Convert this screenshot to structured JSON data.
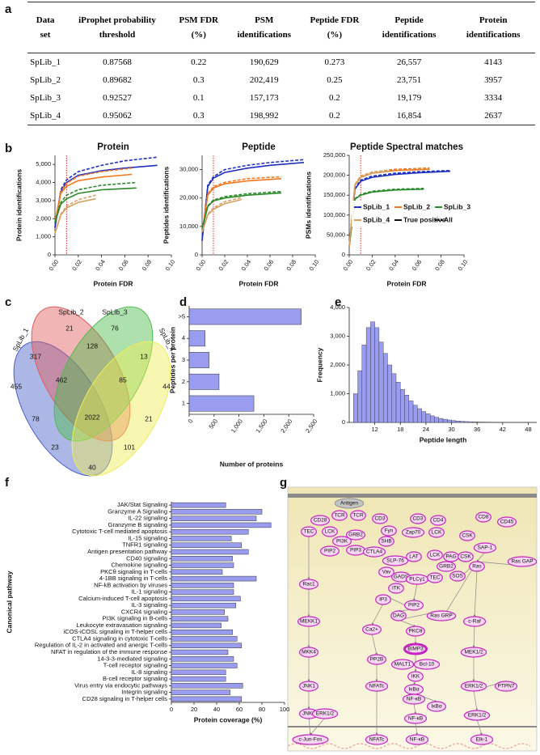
{
  "panel_labels": [
    "a",
    "b",
    "c",
    "d",
    "e",
    "f",
    "g"
  ],
  "table": {
    "header": [
      "Data set",
      "iProphet probability threshold",
      "PSM FDR (%)",
      "PSM identifications",
      "Peptide FDR (%)",
      "Peptide identifications",
      "Protein identifications"
    ],
    "rows": [
      [
        "SpLib_1",
        "0.87568",
        "0.22",
        "190,629",
        "0.273",
        "26,557",
        "4143"
      ],
      [
        "SpLib_2",
        "0.89682",
        "0.3",
        "202,419",
        "0.25",
        "23,751",
        "3957"
      ],
      [
        "SpLib_3",
        "0.92527",
        "0.1",
        "157,173",
        "0.2",
        "19,179",
        "3334"
      ],
      [
        "SpLib_4",
        "0.95062",
        "0.3",
        "198,992",
        "0.2",
        "16,854",
        "2637"
      ]
    ]
  },
  "chart_data": [
    {
      "type": "line",
      "title": "Protein",
      "x_label": "Protein FDR",
      "y_label": "Protein identifications",
      "vline": 0.01,
      "xlim": [
        0,
        0.1
      ],
      "xticks": [
        {
          "value": 0,
          "label": "0.00"
        },
        0.02,
        0.04,
        0.06,
        0.08,
        {
          "value": 0.1,
          "label": "0.10"
        }
      ],
      "ylim": [
        0,
        5500
      ],
      "yticks": [
        0,
        {
          "value": 1000,
          "label": "1,000"
        },
        {
          "value": 2000,
          "label": "2,000"
        },
        {
          "value": 3000,
          "label": "3,000"
        },
        {
          "value": 4000,
          "label": "4,000"
        },
        {
          "value": 5000,
          "label": "5,000"
        }
      ],
      "series": [
        {
          "name": "SpLib_1",
          "line": "True positive",
          "dashed": false,
          "color": "#1f2fbf",
          "x": [
            0,
            0.005,
            0.01,
            0.02,
            0.04,
            0.06,
            0.088
          ],
          "values": [
            1500,
            3500,
            4000,
            4400,
            4650,
            4800,
            4950
          ]
        },
        {
          "name": "SpLib_1",
          "line": "All",
          "dashed": true,
          "color": "#1f2fbf",
          "x": [
            0,
            0.005,
            0.01,
            0.02,
            0.04,
            0.06,
            0.088
          ],
          "values": [
            1500,
            3600,
            4150,
            4600,
            4950,
            5200,
            5400
          ]
        },
        {
          "name": "SpLib_2",
          "line": "True positive",
          "dashed": false,
          "color": "#f07820",
          "x": [
            0,
            0.005,
            0.01,
            0.02,
            0.04,
            0.066
          ],
          "values": [
            1800,
            3400,
            3800,
            4100,
            4300,
            4450
          ]
        },
        {
          "name": "SpLib_2",
          "line": "All",
          "dashed": true,
          "color": "#f07820",
          "x": [
            0,
            0.005,
            0.01,
            0.02,
            0.04,
            0.066
          ],
          "values": [
            1800,
            3500,
            3950,
            4350,
            4600,
            4800
          ]
        },
        {
          "name": "SpLib_3",
          "line": "True positive",
          "dashed": false,
          "color": "#2a8a2a",
          "x": [
            0,
            0.005,
            0.01,
            0.02,
            0.04,
            0.07
          ],
          "values": [
            1800,
            2800,
            3100,
            3400,
            3600,
            3700
          ]
        },
        {
          "name": "SpLib_3",
          "line": "All",
          "dashed": true,
          "color": "#2a8a2a",
          "x": [
            0,
            0.005,
            0.01,
            0.02,
            0.04,
            0.07
          ],
          "values": [
            1800,
            2900,
            3300,
            3600,
            3850,
            4000
          ]
        },
        {
          "name": "SpLib_4",
          "line": "True positive",
          "dashed": false,
          "color": "#d4a060",
          "x": [
            0,
            0.005,
            0.01,
            0.02,
            0.035
          ],
          "values": [
            1200,
            2200,
            2600,
            2900,
            3100
          ]
        },
        {
          "name": "SpLib_4",
          "line": "All",
          "dashed": true,
          "color": "#d4a060",
          "x": [
            0,
            0.005,
            0.01,
            0.02,
            0.035
          ],
          "values": [
            1200,
            2250,
            2700,
            3050,
            3300
          ]
        }
      ]
    },
    {
      "type": "line",
      "title": "Peptide",
      "x_label": "Protein FDR",
      "y_label": "Peptides identifications",
      "vline": 0.01,
      "xlim": [
        0,
        0.1
      ],
      "xticks": [
        {
          "value": 0,
          "label": "0.00"
        },
        0.02,
        0.04,
        0.06,
        0.08,
        {
          "value": 0.1,
          "label": "0.10"
        }
      ],
      "ylim": [
        0,
        35000
      ],
      "yticks": [
        0,
        {
          "value": 10000,
          "label": "10,000"
        },
        {
          "value": 20000,
          "label": "20,000"
        },
        {
          "value": 30000,
          "label": "30,000"
        }
      ],
      "series": [
        {
          "name": "SpLib_1",
          "line": "True positive",
          "dashed": false,
          "color": "#1f2fbf",
          "x": [
            0,
            0.005,
            0.01,
            0.02,
            0.04,
            0.06,
            0.09
          ],
          "values": [
            5000,
            24000,
            27000,
            29000,
            30500,
            31500,
            32500
          ]
        },
        {
          "name": "SpLib_1",
          "line": "All",
          "dashed": true,
          "color": "#1f2fbf",
          "x": [
            0,
            0.005,
            0.01,
            0.02,
            0.04,
            0.06,
            0.09
          ],
          "values": [
            5000,
            24500,
            27500,
            30000,
            31500,
            32500,
            33500
          ]
        },
        {
          "name": "SpLib_2",
          "line": "True positive",
          "dashed": false,
          "color": "#f07820",
          "x": [
            0,
            0.005,
            0.01,
            0.02,
            0.04,
            0.07
          ],
          "values": [
            8000,
            21000,
            23500,
            25000,
            26000,
            26800
          ]
        },
        {
          "name": "SpLib_2",
          "line": "All",
          "dashed": true,
          "color": "#f07820",
          "x": [
            0,
            0.005,
            0.01,
            0.02,
            0.04,
            0.07
          ],
          "values": [
            8000,
            21500,
            24000,
            25500,
            26800,
            27500
          ]
        },
        {
          "name": "SpLib_3",
          "line": "True positive",
          "dashed": false,
          "color": "#2a8a2a",
          "x": [
            0,
            0.005,
            0.01,
            0.02,
            0.04,
            0.07
          ],
          "values": [
            9000,
            17000,
            19000,
            20000,
            21000,
            21800
          ]
        },
        {
          "name": "SpLib_3",
          "line": "All",
          "dashed": true,
          "color": "#2a8a2a",
          "x": [
            0,
            0.005,
            0.01,
            0.02,
            0.04,
            0.07
          ],
          "values": [
            9000,
            17300,
            19300,
            20500,
            21500,
            22300
          ]
        },
        {
          "name": "SpLib_4",
          "line": "True positive",
          "dashed": false,
          "color": "#d4a060",
          "x": [
            0,
            0.005,
            0.01,
            0.02,
            0.035
          ],
          "values": [
            8000,
            14000,
            16000,
            18000,
            19500
          ]
        },
        {
          "name": "SpLib_4",
          "line": "All",
          "dashed": true,
          "color": "#d4a060",
          "x": [
            0,
            0.005,
            0.01,
            0.02,
            0.035
          ],
          "values": [
            8000,
            14300,
            16500,
            18700,
            20200
          ]
        }
      ]
    },
    {
      "type": "line",
      "title": "Peptide Spectral matches",
      "x_label": "Protein FDR",
      "y_label": "PSMs identifications",
      "vline": 0.01,
      "legend": "right",
      "xlim": [
        0,
        0.1
      ],
      "xticks": [
        {
          "value": 0,
          "label": "0.00"
        },
        0.02,
        0.04,
        0.06,
        0.08,
        {
          "value": 0.1,
          "label": "0.10"
        }
      ],
      "ylim": [
        0,
        250000
      ],
      "yticks": [
        0,
        {
          "value": 50000,
          "label": "50,000"
        },
        {
          "value": 100000,
          "label": "100,000"
        },
        {
          "value": 150000,
          "label": "150,000"
        },
        {
          "value": 200000,
          "label": "200,000"
        },
        {
          "value": 250000,
          "label": "250,000"
        }
      ],
      "series": [
        {
          "name": "SpLib_1",
          "line": "True positive",
          "dashed": false,
          "color": "#1f2fbf",
          "x": [
            0,
            0.005,
            0.01,
            0.02,
            0.04,
            0.06,
            0.088
          ],
          "values": [
            20000,
            165000,
            185000,
            195000,
            202000,
            206000,
            210000
          ]
        },
        {
          "name": "SpLib_1",
          "line": "All",
          "dashed": true,
          "color": "#1f2fbf",
          "x": [
            0,
            0.005,
            0.01,
            0.02,
            0.04,
            0.06,
            0.088
          ],
          "values": [
            20000,
            167000,
            188000,
            198000,
            205000,
            209000,
            212000
          ]
        },
        {
          "name": "SpLib_2",
          "line": "True positive",
          "dashed": false,
          "color": "#f07820",
          "x": [
            0,
            0.005,
            0.01,
            0.02,
            0.04,
            0.07
          ],
          "values": [
            20000,
            175000,
            195000,
            205000,
            212000,
            215000
          ]
        },
        {
          "name": "SpLib_2",
          "line": "All",
          "dashed": true,
          "color": "#f07820",
          "x": [
            0,
            0.005,
            0.01,
            0.02,
            0.04,
            0.07
          ],
          "values": [
            20000,
            177000,
            198000,
            208000,
            215000,
            218000
          ]
        },
        {
          "name": "SpLib_3",
          "line": "True positive",
          "dashed": false,
          "color": "#2a8a2a",
          "x": [
            0,
            0.005,
            0.01,
            0.02,
            0.04,
            0.065
          ],
          "values": [
            20000,
            140000,
            150000,
            158000,
            163000,
            165000
          ]
        },
        {
          "name": "SpLib_3",
          "line": "All",
          "dashed": true,
          "color": "#2a8a2a",
          "x": [
            0,
            0.005,
            0.01,
            0.02,
            0.04,
            0.065
          ],
          "values": [
            20000,
            141000,
            152000,
            160000,
            165000,
            167000
          ]
        },
        {
          "name": "SpLib_4",
          "line": "True positive",
          "dashed": false,
          "color": "#d4a060",
          "x": [
            0,
            0.005,
            0.01,
            0.02,
            0.035
          ],
          "values": [
            20000,
            175000,
            195000,
            205000,
            210000
          ]
        },
        {
          "name": "SpLib_4",
          "line": "All",
          "dashed": true,
          "color": "#d4a060",
          "x": [
            0,
            0.005,
            0.01,
            0.02,
            0.035
          ],
          "values": [
            20000,
            177000,
            198000,
            208000,
            213000
          ]
        }
      ]
    },
    {
      "type": "hbar",
      "x_label": "Number of proteins",
      "y_label": "Peptides per protein",
      "color": "#9a9cf0",
      "categories": [
        ">5",
        "4",
        "3",
        "2",
        "1"
      ],
      "values": [
        2250,
        320,
        400,
        600,
        1300
      ],
      "xlim": [
        0,
        2500
      ],
      "xticks": [
        0,
        500,
        {
          "value": 1000,
          "label": "1,000"
        },
        {
          "value": 1500,
          "label": "1,500"
        },
        {
          "value": 2000,
          "label": "2,000"
        },
        {
          "value": 2500,
          "label": "2,500"
        }
      ]
    },
    {
      "type": "histogram",
      "x_label": "Peptide length",
      "y_label": "Frequency",
      "color": "#9a9cf0",
      "bins": [
        7,
        8,
        9,
        10,
        11,
        12,
        13,
        14,
        15,
        16,
        17,
        18,
        19,
        20,
        21,
        22,
        23,
        24,
        25,
        26,
        27,
        28,
        29,
        30,
        31,
        32,
        33,
        34,
        35,
        36,
        37,
        38,
        39,
        40,
        41,
        42,
        43,
        44,
        45,
        46,
        47,
        48,
        49,
        50
      ],
      "values": [
        1000,
        1800,
        2700,
        3300,
        3500,
        3300,
        2800,
        2400,
        2000,
        1700,
        1400,
        1150,
        950,
        750,
        600,
        480,
        380,
        300,
        230,
        180,
        140,
        110,
        85,
        65,
        50,
        40,
        30,
        25,
        20,
        15,
        12,
        10,
        8,
        6,
        5,
        4,
        3,
        3,
        2,
        2,
        1,
        1,
        1
      ],
      "xlim": [
        6,
        50
      ],
      "xticks": [
        12,
        18,
        24,
        30,
        36,
        42,
        48
      ],
      "ylim": [
        0,
        4000
      ],
      "yticks": [
        0,
        {
          "value": 1000,
          "label": "1,000"
        },
        {
          "value": 2000,
          "label": "2,000"
        },
        {
          "value": 3000,
          "label": "3,000"
        },
        {
          "value": 4000,
          "label": "4,000"
        }
      ]
    },
    {
      "type": "hbar",
      "x_label": "Protein coverage (%)",
      "y_label": "Canonical pathway",
      "color": "#9a9cf0",
      "categories": [
        "JAK/Stat Signaling",
        "Granzyme A Signaling",
        "IL-22 signaling",
        "Granzyme B signaling",
        "Cytotoxic T-cell mediated apoptosis",
        "IL-15 signaling",
        "TNFR1 signaling",
        "Antigen presentation pathway",
        "CD40 signaling",
        "Chemokine signaling",
        "PKCθ signaling in T-cells",
        "4-1BB signaling in T-cells",
        "NF-kB activation by viruses",
        "IL-1 signaling",
        "Calcium-induced T-cell apoptosis",
        "IL-3 signaling",
        "CXCR4 signaling",
        "PI3K signaling in B-cells",
        "Leukocyte extravasation signaling",
        "iCOS-iCOSL signaling in T-helper cells",
        "CTLA4 signaling in cytotoxic T-cells",
        "Regulation of IL-2 in activated and anergic T-cells",
        "NFAT in regulation of the immune response",
        "14-3-3-mediated signaling",
        "T-cell receptor signaling",
        "IL-8 signaling",
        "B-cell receptor signaling",
        "Virus entry via endocytic pathways",
        "Integrin signaling",
        "CD28 signaling in T-helper cells"
      ],
      "values": [
        48,
        80,
        75,
        88,
        68,
        53,
        62,
        68,
        54,
        55,
        45,
        75,
        55,
        55,
        61,
        57,
        47,
        50,
        44,
        54,
        58,
        62,
        50,
        55,
        58,
        48,
        48,
        63,
        52,
        62
      ],
      "xlim": [
        0,
        100
      ],
      "xticks": [
        0,
        20,
        40,
        60,
        80,
        100
      ]
    }
  ],
  "venn": {
    "sets": [
      "SpLib_1",
      "SpLib_2",
      "SpLib_3",
      "SpLib_4"
    ],
    "regions": [
      21,
      76,
      317,
      128,
      13,
      455,
      462,
      85,
      44,
      78,
      2022,
      21,
      23,
      101,
      40
    ]
  },
  "pathway": {
    "nodes": [
      "Antigen",
      "TCR",
      "TCR",
      "CD28",
      "CD3",
      "CD3",
      "CD4",
      "CD8",
      "CD45",
      "TEC",
      "LCK",
      "PI3K",
      "PIP2",
      "PIP3",
      "GRB2",
      "CTLA4",
      "Fyn",
      "SHB",
      "Zap70",
      "LCK",
      "SLP-76",
      "Vav",
      "LAT",
      "GADS",
      "PLCγ1",
      "ITK",
      "TEC",
      "LCK",
      "PAG",
      "CSK",
      "CSK",
      "SAP-1",
      "GRB2",
      "SOS",
      "Ras",
      "Ras GAP",
      "Rac1",
      "IP3",
      "PIP2",
      "DAG",
      "Ras GRP",
      "c-Raf",
      "MEKK1",
      "Ca2+",
      "PKCθ",
      "MKK4",
      "PP2B",
      "BIMP3",
      "MALT1",
      "Bcl-10",
      "MEK1/2",
      "IKK",
      "JNK1",
      "NFATc",
      "IκBα",
      "NF-κB",
      "IκBα",
      "ERK1/2",
      "PTPN7",
      "NF-κB",
      "JNK1",
      "ERK1/2",
      "ERK1/2",
      "c-Jun-Fos",
      "NFATc",
      "NF-κB",
      "Elk-1"
    ]
  }
}
